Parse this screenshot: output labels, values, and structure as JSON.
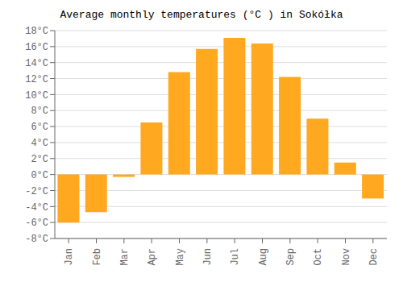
{
  "chart_data": {
    "type": "bar",
    "title": "Average monthly temperatures (°C ) in Sokółka",
    "categories": [
      "Jan",
      "Feb",
      "Mar",
      "Apr",
      "May",
      "Jun",
      "Jul",
      "Aug",
      "Sep",
      "Oct",
      "Nov",
      "Dec"
    ],
    "values": [
      -6.0,
      -4.7,
      -0.3,
      6.5,
      12.8,
      15.7,
      17.1,
      16.4,
      12.2,
      7.0,
      1.5,
      -3.0
    ],
    "color": "#FFA820",
    "ylim": [
      -8,
      18
    ],
    "yticks": [
      {
        "value": -8,
        "label": "-8°C"
      },
      {
        "value": -6,
        "label": "-6°C"
      },
      {
        "value": -4,
        "label": "-4°C"
      },
      {
        "value": -2,
        "label": "-2°C"
      },
      {
        "value": 0,
        "label": "0°C"
      },
      {
        "value": 2,
        "label": "2°C"
      },
      {
        "value": 4,
        "label": "4°C"
      },
      {
        "value": 6,
        "label": "6°C"
      },
      {
        "value": 8,
        "label": "8°C"
      },
      {
        "value": 10,
        "label": "10°C"
      },
      {
        "value": 12,
        "label": "12°C"
      },
      {
        "value": 14,
        "label": "14°C"
      },
      {
        "value": 16,
        "label": "16°C"
      },
      {
        "value": 18,
        "label": "18°C"
      }
    ],
    "grid": true
  }
}
